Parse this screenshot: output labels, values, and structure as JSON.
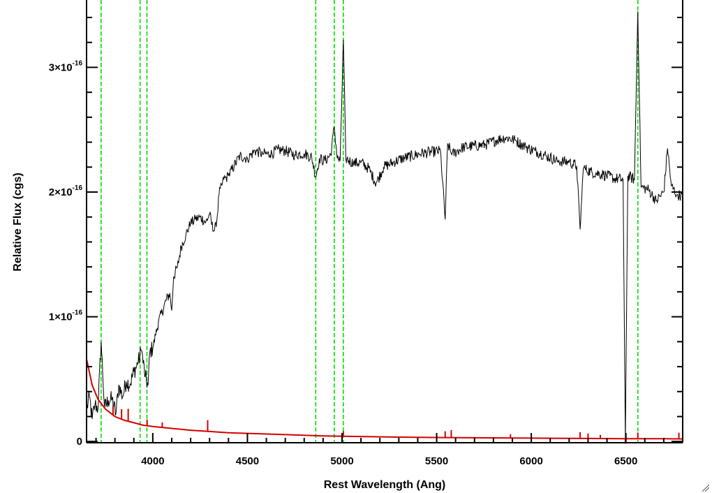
{
  "chart_data": {
    "type": "line",
    "title": "",
    "xlabel": "Rest Wavelength (Ang)",
    "ylabel": "Relative Flux (cgs)",
    "xlim": [
      3650,
      6800
    ],
    "ylim": [
      -0.01,
      3.54
    ],
    "y_unit_exponent": -16,
    "x_ticks": [
      4000,
      4500,
      5000,
      5500,
      6000,
      6500
    ],
    "x_tick_labels": [
      "4000",
      "4500",
      "5000",
      "5500",
      "6000",
      "6500"
    ],
    "x_minor_step": 100,
    "y_ticks": [
      {
        "value": 0,
        "mantissa": "0",
        "exponent": ""
      },
      {
        "value": 1,
        "mantissa": "1×10",
        "exponent": "-16"
      },
      {
        "value": 2,
        "mantissa": "2×10",
        "exponent": "-16"
      },
      {
        "value": 3,
        "mantissa": "3×10",
        "exponent": "-16"
      }
    ],
    "y_minor_step": 0.2,
    "grid": false,
    "legend": "none",
    "colors": {
      "spectrum": "#000000",
      "error": "#d40000",
      "lines": "#00dd00",
      "axes": "#000000"
    },
    "emission_lines": [
      3727,
      3933,
      3969,
      4861,
      4959,
      5007,
      6563
    ],
    "series": [
      {
        "color": "#000000",
        "points": [
          [
            3650,
            0.25
          ],
          [
            3665,
            0.36
          ],
          [
            3680,
            0.18
          ],
          [
            3695,
            0.3
          ],
          [
            3710,
            0.26
          ],
          [
            3727,
            0.8
          ],
          [
            3745,
            0.27
          ],
          [
            3765,
            0.33
          ],
          [
            3785,
            0.34
          ],
          [
            3805,
            0.22
          ],
          [
            3820,
            0.45
          ],
          [
            3840,
            0.36
          ],
          [
            3860,
            0.48
          ],
          [
            3880,
            0.46
          ],
          [
            3900,
            0.56
          ],
          [
            3920,
            0.62
          ],
          [
            3940,
            0.73
          ],
          [
            3960,
            0.52
          ],
          [
            3975,
            0.45
          ],
          [
            3985,
            0.72
          ],
          [
            4000,
            0.75
          ],
          [
            4015,
            0.85
          ],
          [
            4030,
            0.96
          ],
          [
            4050,
            1.04
          ],
          [
            4070,
            1.13
          ],
          [
            4090,
            1.19
          ],
          [
            4100,
            1.05
          ],
          [
            4110,
            1.32
          ],
          [
            4130,
            1.4
          ],
          [
            4150,
            1.56
          ],
          [
            4175,
            1.66
          ],
          [
            4200,
            1.75
          ],
          [
            4225,
            1.78
          ],
          [
            4250,
            1.8
          ],
          [
            4280,
            1.76
          ],
          [
            4300,
            1.82
          ],
          [
            4320,
            1.69
          ],
          [
            4335,
            1.72
          ],
          [
            4350,
            1.98
          ],
          [
            4375,
            2.1
          ],
          [
            4400,
            2.13
          ],
          [
            4430,
            2.21
          ],
          [
            4460,
            2.29
          ],
          [
            4500,
            2.27
          ],
          [
            4540,
            2.33
          ],
          [
            4580,
            2.31
          ],
          [
            4620,
            2.3
          ],
          [
            4660,
            2.34
          ],
          [
            4700,
            2.33
          ],
          [
            4750,
            2.3
          ],
          [
            4800,
            2.31
          ],
          [
            4840,
            2.28
          ],
          [
            4861,
            2.12
          ],
          [
            4880,
            2.27
          ],
          [
            4910,
            2.25
          ],
          [
            4940,
            2.3
          ],
          [
            4959,
            2.52
          ],
          [
            4975,
            2.27
          ],
          [
            4990,
            2.25
          ],
          [
            5007,
            3.22
          ],
          [
            5020,
            2.27
          ],
          [
            5060,
            2.23
          ],
          [
            5100,
            2.24
          ],
          [
            5140,
            2.19
          ],
          [
            5180,
            2.07
          ],
          [
            5220,
            2.2
          ],
          [
            5270,
            2.24
          ],
          [
            5320,
            2.27
          ],
          [
            5370,
            2.29
          ],
          [
            5420,
            2.31
          ],
          [
            5470,
            2.32
          ],
          [
            5520,
            2.33
          ],
          [
            5545,
            1.78
          ],
          [
            5558,
            2.39
          ],
          [
            5580,
            2.3
          ],
          [
            5640,
            2.36
          ],
          [
            5700,
            2.37
          ],
          [
            5760,
            2.38
          ],
          [
            5820,
            2.42
          ],
          [
            5870,
            2.44
          ],
          [
            5920,
            2.41
          ],
          [
            5970,
            2.36
          ],
          [
            6020,
            2.33
          ],
          [
            6080,
            2.29
          ],
          [
            6140,
            2.25
          ],
          [
            6200,
            2.24
          ],
          [
            6240,
            2.21
          ],
          [
            6258,
            1.7
          ],
          [
            6275,
            2.19
          ],
          [
            6320,
            2.16
          ],
          [
            6380,
            2.14
          ],
          [
            6440,
            2.11
          ],
          [
            6485,
            2.1
          ],
          [
            6497,
            -0.01
          ],
          [
            6510,
            2.13
          ],
          [
            6545,
            2.1
          ],
          [
            6563,
            3.45
          ],
          [
            6580,
            2.04
          ],
          [
            6620,
            2.02
          ],
          [
            6660,
            1.93
          ],
          [
            6700,
            2.0
          ],
          [
            6720,
            2.35
          ],
          [
            6740,
            2.05
          ],
          [
            6770,
            1.98
          ],
          [
            6800,
            1.97
          ]
        ]
      },
      {
        "color": "#d40000",
        "points": [
          [
            3650,
            0.66
          ],
          [
            3680,
            0.45
          ],
          [
            3710,
            0.34
          ],
          [
            3750,
            0.26
          ],
          [
            3800,
            0.2
          ],
          [
            3850,
            0.17
          ],
          [
            3900,
            0.15
          ],
          [
            3950,
            0.13
          ],
          [
            4000,
            0.12
          ],
          [
            4100,
            0.105
          ],
          [
            4200,
            0.09
          ],
          [
            4300,
            0.08
          ],
          [
            4400,
            0.07
          ],
          [
            4500,
            0.065
          ],
          [
            4700,
            0.055
          ],
          [
            4900,
            0.045
          ],
          [
            5100,
            0.04
          ],
          [
            5300,
            0.035
          ],
          [
            5500,
            0.032
          ],
          [
            5700,
            0.03
          ],
          [
            5900,
            0.028
          ],
          [
            6100,
            0.026
          ],
          [
            6300,
            0.024
          ],
          [
            6500,
            0.022
          ],
          [
            6700,
            0.022
          ],
          [
            6800,
            0.02
          ]
        ],
        "spikes": [
          [
            3790,
            0.07
          ],
          [
            3835,
            0.08
          ],
          [
            3870,
            0.1
          ],
          [
            3970,
            0.05
          ],
          [
            4050,
            0.04
          ],
          [
            4290,
            0.09
          ],
          [
            5007,
            0.04
          ],
          [
            5545,
            0.05
          ],
          [
            5577,
            0.06
          ],
          [
            5890,
            0.03
          ],
          [
            6258,
            0.05
          ],
          [
            6300,
            0.04
          ],
          [
            6365,
            0.03
          ],
          [
            6497,
            -0.04
          ],
          [
            6563,
            0.05
          ],
          [
            6780,
            0.05
          ]
        ]
      }
    ]
  }
}
